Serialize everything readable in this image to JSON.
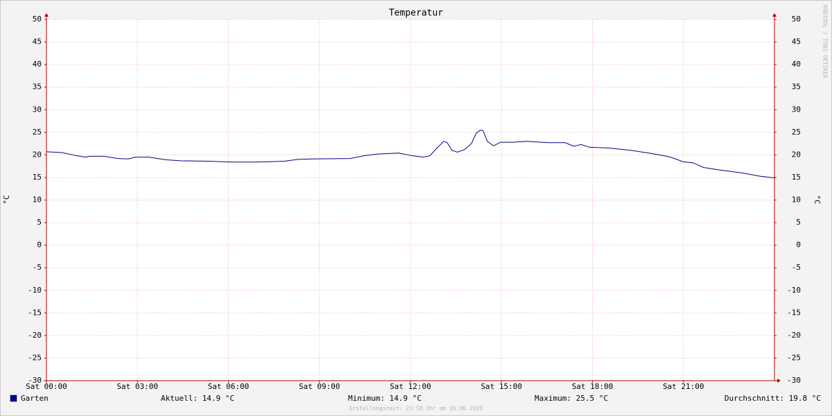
{
  "chart_data": {
    "type": "line",
    "title": "Temperatur",
    "x": [
      0,
      0.53,
      1.0,
      1.3,
      1.43,
      1.9,
      2.35,
      2.7,
      2.93,
      3.38,
      3.95,
      4.41,
      5.33,
      6.13,
      6.93,
      7.84,
      8.3,
      8.75,
      10.01,
      10.47,
      10.93,
      11.61,
      12.07,
      12.41,
      12.64,
      12.87,
      13.1,
      13.21,
      13.37,
      13.55,
      13.79,
      14.01,
      14.17,
      14.31,
      14.4,
      14.53,
      14.74,
      14.97,
      15.38,
      15.84,
      16.53,
      17.1,
      17.39,
      17.62,
      17.9,
      18.58,
      19.27,
      19.95,
      20.53,
      20.98,
      21.33,
      21.67,
      22.24,
      22.93,
      23.5,
      24.0
    ],
    "series": [
      {
        "name": "Garten",
        "color": "#000080",
        "legend_color": "#0000a0",
        "values": [
          20.7,
          20.5,
          19.8,
          19.5,
          19.7,
          19.7,
          19.2,
          19.1,
          19.5,
          19.5,
          18.9,
          18.7,
          18.6,
          18.4,
          18.4,
          18.6,
          19.0,
          19.1,
          19.2,
          19.8,
          20.2,
          20.4,
          19.8,
          19.5,
          19.8,
          21.5,
          23.0,
          22.7,
          21.0,
          20.6,
          21.2,
          22.5,
          24.8,
          25.5,
          25.3,
          23.0,
          22.0,
          22.8,
          22.8,
          23.0,
          22.7,
          22.7,
          21.9,
          22.3,
          21.7,
          21.5,
          21.0,
          20.3,
          19.6,
          18.5,
          18.2,
          17.2,
          16.6,
          16.0,
          15.3,
          14.9
        ]
      }
    ],
    "xlim": [
      0,
      24
    ],
    "xticks": [
      {
        "value": 0,
        "label": "Sat 00:00"
      },
      {
        "value": 3,
        "label": "Sat 03:00"
      },
      {
        "value": 6,
        "label": "Sat 06:00"
      },
      {
        "value": 9,
        "label": "Sat 09:00"
      },
      {
        "value": 12,
        "label": "Sat 12:00"
      },
      {
        "value": 15,
        "label": "Sat 15:00"
      },
      {
        "value": 18,
        "label": "Sat 18:00"
      },
      {
        "value": 21,
        "label": "Sat 21:00"
      }
    ],
    "ylim": [
      -30,
      50
    ],
    "yticks": [
      -30,
      -25,
      -20,
      -15,
      -10,
      -5,
      0,
      5,
      10,
      15,
      20,
      25,
      30,
      35,
      40,
      45,
      50
    ],
    "y2lim": [
      -30,
      50
    ],
    "y2ticks": [
      -30,
      -25,
      -20,
      -15,
      -10,
      -5,
      0,
      5,
      10,
      15,
      20,
      25,
      30,
      35,
      40,
      45,
      50
    ],
    "y_label": "°C",
    "y2_label": "°C",
    "grid": true,
    "stats": [
      "Aktuell: 14.9 °C",
      "Minimum: 14.9 °C",
      "Maximum: 25.5 °C",
      "Durchschnitt: 19.8 °C"
    ],
    "footnote": "Erstellungszeit: 23:58 Uhr am 16.08.2025",
    "watermark": "RRDTOOL / TOBI OETIKER"
  }
}
